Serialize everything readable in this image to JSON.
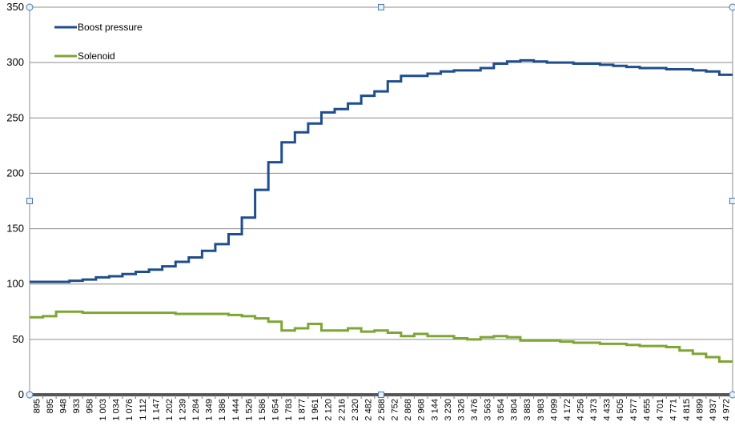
{
  "chart_data": {
    "type": "line",
    "title": "",
    "xlabel": "",
    "ylabel": "",
    "ylim": [
      0,
      350
    ],
    "y_ticks": [
      "0",
      "50",
      "100",
      "150",
      "200",
      "250",
      "300",
      "350"
    ],
    "y_tick_values": [
      0,
      50,
      100,
      150,
      200,
      250,
      300,
      350
    ],
    "grid": "horizontal",
    "legend_position": "top-left",
    "x_tick_labels": [
      "895",
      "895",
      "948",
      "933",
      "958",
      "1 003",
      "1 034",
      "1 076",
      "1 112",
      "1 147",
      "1 202",
      "1 239",
      "1 284",
      "1 349",
      "1 386",
      "1 444",
      "1 526",
      "1 586",
      "1 654",
      "1 783",
      "1 877",
      "1 961",
      "2 120",
      "2 216",
      "2 320",
      "2 482",
      "2 588",
      "2 752",
      "2 868",
      "2 968",
      "3 144",
      "3 230",
      "3 326",
      "3 476",
      "3 563",
      "3 654",
      "3 804",
      "3 883",
      "3 983",
      "4 099",
      "4 172",
      "4 256",
      "4 373",
      "4 433",
      "4 505",
      "4 577",
      "4 655",
      "4 701",
      "4 771",
      "4 815",
      "4 899",
      "4 937",
      "4 972"
    ],
    "series": [
      {
        "name": "Boost pressure",
        "color": "#1f4e8c",
        "values": [
          102,
          102,
          102,
          103,
          104,
          106,
          107,
          109,
          111,
          113,
          116,
          120,
          124,
          130,
          136,
          145,
          160,
          185,
          210,
          228,
          237,
          245,
          255,
          258,
          263,
          270,
          274,
          283,
          288,
          288,
          290,
          292,
          293,
          293,
          295,
          299,
          301,
          302,
          301,
          300,
          300,
          299,
          299,
          298,
          297,
          296,
          295,
          295,
          294,
          294,
          293,
          292,
          289
        ]
      },
      {
        "name": "Solenoid",
        "color": "#7fa534",
        "values": [
          70,
          71,
          75,
          75,
          74,
          74,
          74,
          74,
          74,
          74,
          74,
          73,
          73,
          73,
          73,
          72,
          71,
          69,
          66,
          58,
          60,
          64,
          58,
          58,
          60,
          57,
          58,
          56,
          53,
          55,
          53,
          53,
          51,
          50,
          52,
          53,
          52,
          49,
          49,
          49,
          48,
          47,
          47,
          46,
          46,
          45,
          44,
          44,
          43,
          40,
          37,
          34,
          30
        ]
      }
    ]
  }
}
